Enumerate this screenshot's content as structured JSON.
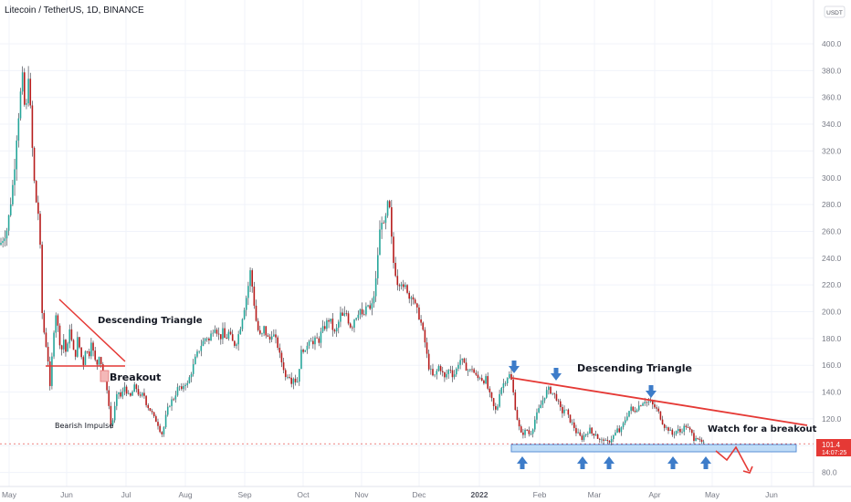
{
  "header": {
    "title": "Litecoin / TetherUS, 1D, BINANCE",
    "currency": "USDT"
  },
  "price_badge": {
    "price": "101.4",
    "countdown": "14:07:25"
  },
  "colors": {
    "up": "#26a69a",
    "down": "#b71c1c",
    "wick": "#131722",
    "trend": "#e53935",
    "arrow": "#3d7cc9",
    "zone": "#bfdcf7",
    "zone_border": "#5b8fd6"
  },
  "annotations": {
    "desc_tri_1": "Descending Triangle",
    "breakout": "Breakout",
    "bearish": "Bearish Impulse",
    "desc_tri_2": "Descending Triangle",
    "watch": "Watch for a breakout"
  },
  "chart_data": {
    "type": "candlestick",
    "title": "Litecoin / TetherUS, 1D, BINANCE",
    "x_ticks": [
      "May",
      "Jun",
      "Jul",
      "Aug",
      "Sep",
      "Oct",
      "Nov",
      "Dec",
      "2022",
      "Feb",
      "Mar",
      "Apr",
      "May",
      "Jun"
    ],
    "y_ticks": [
      "80.0",
      "100.0",
      "120.0",
      "140.0",
      "160.0",
      "180.0",
      "200.0",
      "220.0",
      "240.0",
      "260.0",
      "280.0",
      "300.0",
      "320.0",
      "340.0",
      "360.0",
      "380.0",
      "400.0"
    ],
    "ylim": [
      75,
      420
    ],
    "grid": true,
    "last_price": 101.4,
    "path": [
      [
        0,
        250
      ],
      [
        8,
        262
      ],
      [
        15,
        300
      ],
      [
        18,
        330
      ],
      [
        22,
        360
      ],
      [
        25,
        375
      ],
      [
        28,
        340
      ],
      [
        31,
        380
      ],
      [
        34,
        340
      ],
      [
        37,
        300
      ],
      [
        40,
        280
      ],
      [
        43,
        270
      ],
      [
        46,
        200
      ],
      [
        49,
        180
      ],
      [
        52,
        170
      ],
      [
        55,
        140
      ],
      [
        58,
        180
      ],
      [
        61,
        200
      ],
      [
        64,
        185
      ],
      [
        67,
        170
      ],
      [
        70,
        180
      ],
      [
        73,
        165
      ],
      [
        76,
        190
      ],
      [
        79,
        175
      ],
      [
        82,
        165
      ],
      [
        85,
        180
      ],
      [
        88,
        170
      ],
      [
        91,
        160
      ],
      [
        94,
        175
      ],
      [
        97,
        165
      ],
      [
        100,
        180
      ],
      [
        103,
        165
      ],
      [
        106,
        160
      ],
      [
        109,
        170
      ],
      [
        112,
        155
      ],
      [
        115,
        150
      ],
      [
        118,
        140
      ],
      [
        121,
        115
      ],
      [
        124,
        120
      ],
      [
        127,
        135
      ],
      [
        130,
        140
      ],
      [
        133,
        135
      ],
      [
        136,
        145
      ],
      [
        139,
        140
      ],
      [
        142,
        135
      ],
      [
        145,
        140
      ],
      [
        148,
        145
      ],
      [
        151,
        140
      ],
      [
        154,
        135
      ],
      [
        157,
        140
      ],
      [
        160,
        132
      ],
      [
        163,
        128
      ],
      [
        166,
        125
      ],
      [
        169,
        120
      ],
      [
        172,
        118
      ],
      [
        175,
        112
      ],
      [
        178,
        108
      ],
      [
        181,
        120
      ],
      [
        184,
        128
      ],
      [
        187,
        133
      ],
      [
        190,
        135
      ],
      [
        193,
        140
      ],
      [
        196,
        145
      ],
      [
        199,
        140
      ],
      [
        202,
        148
      ],
      [
        205,
        145
      ],
      [
        208,
        152
      ],
      [
        211,
        158
      ],
      [
        214,
        165
      ],
      [
        217,
        170
      ],
      [
        220,
        175
      ],
      [
        223,
        178
      ],
      [
        226,
        182
      ],
      [
        229,
        178
      ],
      [
        232,
        185
      ],
      [
        235,
        190
      ],
      [
        238,
        185
      ],
      [
        241,
        180
      ],
      [
        244,
        185
      ],
      [
        247,
        178
      ],
      [
        250,
        185
      ],
      [
        253,
        180
      ],
      [
        256,
        175
      ],
      [
        259,
        178
      ],
      [
        262,
        185
      ],
      [
        265,
        195
      ],
      [
        268,
        205
      ],
      [
        271,
        215
      ],
      [
        274,
        230
      ],
      [
        277,
        215
      ],
      [
        280,
        195
      ],
      [
        283,
        185
      ],
      [
        286,
        180
      ],
      [
        289,
        188
      ],
      [
        292,
        182
      ],
      [
        295,
        178
      ],
      [
        298,
        185
      ],
      [
        301,
        180
      ],
      [
        304,
        175
      ],
      [
        307,
        165
      ],
      [
        310,
        160
      ],
      [
        313,
        150
      ],
      [
        316,
        155
      ],
      [
        319,
        148
      ],
      [
        322,
        152
      ],
      [
        325,
        145
      ],
      [
        328,
        160
      ],
      [
        331,
        175
      ],
      [
        334,
        168
      ],
      [
        337,
        178
      ],
      [
        340,
        182
      ],
      [
        343,
        175
      ],
      [
        346,
        180
      ],
      [
        349,
        178
      ],
      [
        352,
        185
      ],
      [
        355,
        188
      ],
      [
        358,
        192
      ],
      [
        361,
        195
      ],
      [
        364,
        188
      ],
      [
        367,
        183
      ],
      [
        370,
        190
      ],
      [
        373,
        198
      ],
      [
        376,
        195
      ],
      [
        379,
        200
      ],
      [
        382,
        192
      ],
      [
        385,
        188
      ],
      [
        388,
        195
      ],
      [
        391,
        198
      ],
      [
        394,
        203
      ],
      [
        397,
        195
      ],
      [
        400,
        200
      ],
      [
        403,
        205
      ],
      [
        406,
        200
      ],
      [
        409,
        210
      ],
      [
        412,
        225
      ],
      [
        415,
        255
      ],
      [
        418,
        270
      ],
      [
        421,
        260
      ],
      [
        424,
        280
      ],
      [
        427,
        275
      ],
      [
        430,
        240
      ],
      [
        433,
        230
      ],
      [
        436,
        220
      ],
      [
        439,
        225
      ],
      [
        442,
        215
      ],
      [
        445,
        220
      ],
      [
        448,
        210
      ],
      [
        451,
        215
      ],
      [
        454,
        205
      ],
      [
        457,
        200
      ],
      [
        460,
        195
      ],
      [
        463,
        185
      ],
      [
        466,
        175
      ],
      [
        469,
        160
      ],
      [
        472,
        155
      ],
      [
        475,
        150
      ],
      [
        478,
        155
      ],
      [
        481,
        160
      ],
      [
        484,
        155
      ],
      [
        487,
        150
      ],
      [
        490,
        155
      ],
      [
        493,
        158
      ],
      [
        496,
        152
      ],
      [
        499,
        155
      ],
      [
        502,
        162
      ],
      [
        505,
        165
      ],
      [
        508,
        160
      ],
      [
        511,
        158
      ],
      [
        514,
        155
      ],
      [
        517,
        158
      ],
      [
        520,
        153
      ],
      [
        523,
        150
      ],
      [
        526,
        152
      ],
      [
        529,
        148
      ],
      [
        532,
        150
      ],
      [
        535,
        140
      ],
      [
        538,
        135
      ],
      [
        541,
        128
      ],
      [
        544,
        125
      ],
      [
        547,
        140
      ],
      [
        550,
        145
      ],
      [
        553,
        148
      ],
      [
        556,
        152
      ],
      [
        559,
        153
      ],
      [
        562,
        140
      ],
      [
        565,
        125
      ],
      [
        568,
        115
      ],
      [
        571,
        108
      ],
      [
        574,
        110
      ],
      [
        577,
        112
      ],
      [
        580,
        108
      ],
      [
        583,
        112
      ],
      [
        586,
        120
      ],
      [
        589,
        125
      ],
      [
        592,
        130
      ],
      [
        595,
        135
      ],
      [
        598,
        140
      ],
      [
        601,
        142
      ],
      [
        604,
        140
      ],
      [
        607,
        138
      ],
      [
        610,
        135
      ],
      [
        613,
        128
      ],
      [
        616,
        125
      ],
      [
        619,
        128
      ],
      [
        622,
        122
      ],
      [
        625,
        118
      ],
      [
        628,
        115
      ],
      [
        631,
        110
      ],
      [
        634,
        108
      ],
      [
        637,
        105
      ],
      [
        640,
        108
      ],
      [
        643,
        110
      ],
      [
        646,
        112
      ],
      [
        649,
        108
      ],
      [
        652,
        110
      ],
      [
        655,
        105
      ],
      [
        658,
        103
      ],
      [
        661,
        105
      ],
      [
        664,
        102
      ],
      [
        667,
        103
      ],
      [
        670,
        106
      ],
      [
        673,
        108
      ],
      [
        676,
        112
      ],
      [
        679,
        110
      ],
      [
        682,
        115
      ],
      [
        685,
        120
      ],
      [
        688,
        125
      ],
      [
        691,
        128
      ],
      [
        694,
        125
      ],
      [
        697,
        128
      ],
      [
        700,
        130
      ],
      [
        703,
        132
      ],
      [
        706,
        134
      ],
      [
        709,
        132
      ],
      [
        712,
        133
      ],
      [
        715,
        130
      ],
      [
        718,
        128
      ],
      [
        721,
        125
      ],
      [
        724,
        120
      ],
      [
        727,
        115
      ],
      [
        730,
        113
      ],
      [
        733,
        112
      ],
      [
        736,
        108
      ],
      [
        739,
        110
      ],
      [
        742,
        112
      ],
      [
        745,
        110
      ],
      [
        748,
        113
      ],
      [
        751,
        115
      ],
      [
        754,
        112
      ],
      [
        757,
        110
      ],
      [
        760,
        105
      ],
      [
        763,
        108
      ],
      [
        766,
        103
      ],
      [
        769,
        102
      ],
      [
        772,
        101.4
      ]
    ]
  }
}
